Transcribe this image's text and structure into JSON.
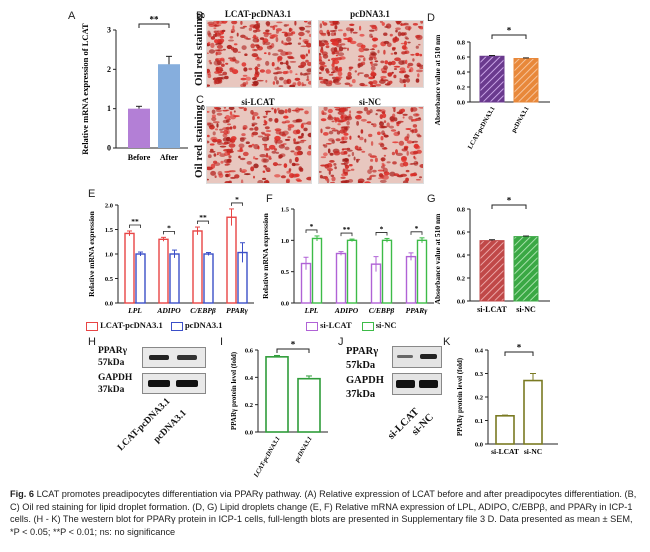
{
  "panels": {
    "A": "A",
    "B": "B",
    "C": "C",
    "D": "D",
    "E": "E",
    "F": "F",
    "G": "G",
    "H": "H",
    "I": "I",
    "J": "J",
    "K": "K"
  },
  "chartA": {
    "type": "bar",
    "categories": [
      "Before",
      "After"
    ],
    "values": [
      1.0,
      2.13
    ],
    "errors": [
      0.06,
      0.2
    ],
    "ylim": [
      0,
      3
    ],
    "yticks": [
      0,
      1,
      2,
      3
    ],
    "ylabel": "Relative mRNA expression of LCAT",
    "sig": "**",
    "colors": [
      "#b37fd6",
      "#86aedd"
    ]
  },
  "chartD": {
    "type": "bar",
    "categories": [
      "LCAT-pcDNA3.1",
      "pcDNA3.1"
    ],
    "values": [
      0.61,
      0.58
    ],
    "errors": [
      0.01,
      0.008
    ],
    "ylim": [
      0,
      0.8
    ],
    "yticks": [
      "0.0",
      "0.2",
      "0.4",
      "0.6",
      "0.8"
    ],
    "ylabel": "Absorbance value at 510 nm",
    "sig": "*",
    "colors": [
      "#6a3a8e",
      "#e8883a"
    ]
  },
  "chartG": {
    "type": "bar",
    "categories": [
      "si-LCAT",
      "si-NC"
    ],
    "values": [
      0.525,
      0.56
    ],
    "errors": [
      0.008,
      0.005
    ],
    "ylim": [
      0,
      0.8
    ],
    "yticks": [
      "0.0",
      "0.2",
      "0.4",
      "0.6",
      "0.8"
    ],
    "ylabel": "Absorbance value at 510 nm",
    "sig": "*",
    "colors": [
      "#c04848",
      "#3aa844"
    ]
  },
  "chartE": {
    "type": "bar",
    "groups": [
      "LPL",
      "ADIPO",
      "C/EBPβ",
      "PPARγ"
    ],
    "series": [
      {
        "name": "LCAT-pcDNA3.1",
        "values": [
          1.42,
          1.3,
          1.47,
          1.75
        ],
        "errors": [
          0.05,
          0.04,
          0.08,
          0.17
        ]
      },
      {
        "name": "pcDNA3.1",
        "values": [
          1.0,
          1.0,
          1.0,
          1.03
        ],
        "errors": [
          0.04,
          0.08,
          0.03,
          0.2
        ]
      }
    ],
    "sigs": [
      "**",
      "*",
      "**",
      "*"
    ],
    "ylim": [
      0,
      2.0
    ],
    "yticks": [
      "0.0",
      "0.5",
      "1.0",
      "1.5",
      "2.0"
    ],
    "ylabel": "Relative mRNA expression",
    "colors": [
      "#e84545",
      "#3b4fc8"
    ]
  },
  "chartF": {
    "type": "bar",
    "groups": [
      "LPL",
      "ADIPO",
      "C/EBPβ",
      "PPARγ"
    ],
    "series": [
      {
        "name": "si-LCAT",
        "values": [
          0.63,
          0.79,
          0.62,
          0.74
        ],
        "errors": [
          0.1,
          0.03,
          0.12,
          0.06
        ]
      },
      {
        "name": "si-NC",
        "values": [
          1.03,
          1.0,
          1.0,
          1.0
        ],
        "errors": [
          0.04,
          0.02,
          0.03,
          0.04
        ]
      }
    ],
    "sigs": [
      "*",
      "**",
      "*",
      "*"
    ],
    "ylim": [
      0,
      1.5
    ],
    "yticks": [
      "0.0",
      "0.5",
      "1.0",
      "1.5"
    ],
    "ylabel": "Relative mRNA expression",
    "colors": [
      "#b062d6",
      "#3dbb48"
    ]
  },
  "chartI": {
    "type": "bar",
    "categories": [
      "LCAT-pcDNA3.1",
      "pcDNA3.1"
    ],
    "values": [
      0.55,
      0.39
    ],
    "errors": [
      0.01,
      0.02
    ],
    "ylim": [
      0,
      0.6
    ],
    "yticks": [
      "0.0",
      "0.2",
      "0.4",
      "0.6"
    ],
    "ylabel": "PPARγ protein level (fold)",
    "sig": "*",
    "colors": [
      "#2f9d3a",
      "#2f9d3a"
    ]
  },
  "chartK": {
    "type": "bar",
    "categories": [
      "si-LCAT",
      "si-NC"
    ],
    "values": [
      0.12,
      0.27
    ],
    "errors": [
      0.003,
      0.03
    ],
    "ylim": [
      0,
      0.4
    ],
    "yticks": [
      "0.0",
      "0.1",
      "0.2",
      "0.3",
      "0.4"
    ],
    "ylabel": "PPARγ protein level (fold)",
    "sig": "*",
    "colors": [
      "#7a7a22",
      "#7a7a22"
    ]
  },
  "images": {
    "b_left": "LCAT-pcDNA3.1",
    "b_right": "pcDNA3.1",
    "c_left": "si-LCAT",
    "c_right": "si-NC",
    "b_side": "Oil red staining",
    "c_side": "Oil red staining"
  },
  "western_h": {
    "bands": [
      "PPARγ",
      "57kDa",
      "GAPDH",
      "37kDa"
    ],
    "lanes": [
      "LCAT-pcDNA3.1",
      "pcDNA3.1"
    ]
  },
  "western_j": {
    "bands": [
      "PPARγ",
      "57kDa",
      "GAPDH",
      "37kDa"
    ],
    "lanes": [
      "si-LCAT",
      "si-NC"
    ]
  },
  "caption": {
    "fig": "Fig. 6",
    "text": "LCAT promotes preadipocytes differentiation via PPARγ pathway. (A) Relative expression of LCAT before and after preadipocytes differentiation. (B, C) Oil red staining for lipid droplet formation. (D, G) Lipid droplets change (E, F) Relative mRNA expression of LPL, ADIPO, C/EBPβ, and PPARγ in ICP-1 cells. (H - K) The western blot for PPARγ protein in ICP-1 cells, full-length blots are presented in Supplementary file 3 D. Data presented as mean ± SEM, *P < 0.05; **P < 0.01; ns: no significance"
  }
}
